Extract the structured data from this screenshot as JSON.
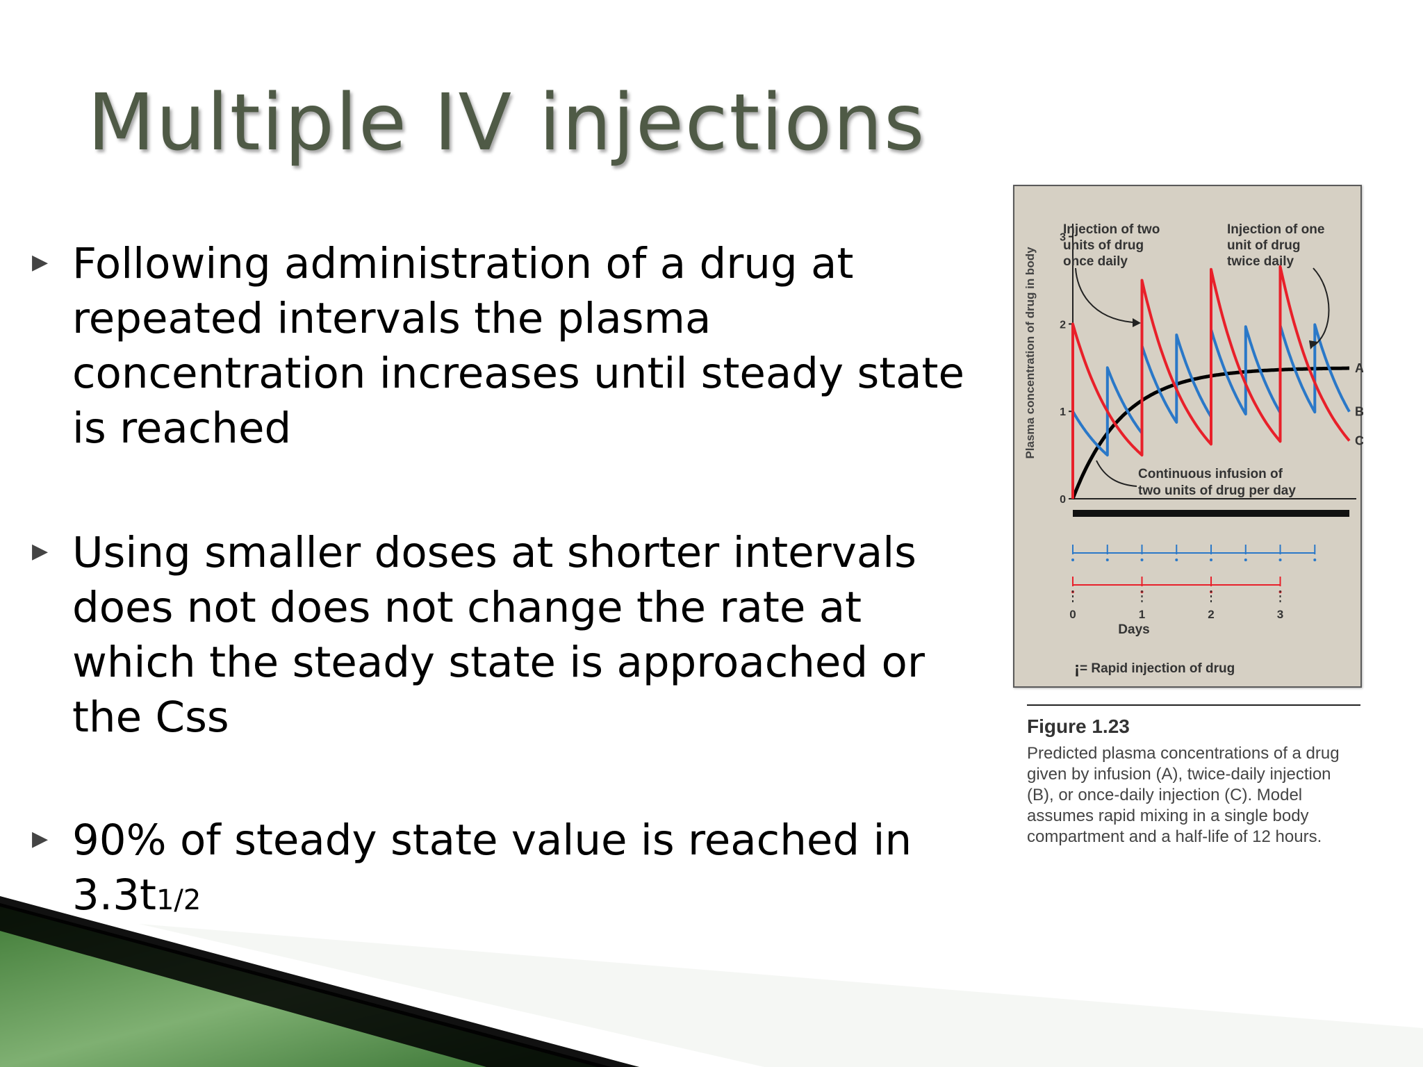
{
  "slide": {
    "title": "Multiple IV injections",
    "bullets": [
      {
        "text": "Following administration of a drug at repeated intervals the plasma concentration increases until steady state is reached"
      },
      {
        "text": "Using smaller doses at shorter intervals does not does not change the rate at which the steady state is approached or the Css"
      },
      {
        "text_main": "90% of steady state value is reached in 3.3t",
        "text_sub": "1/2"
      }
    ],
    "bullet_icon": "triangle-right-icon"
  },
  "figure": {
    "annotation_left": [
      "Injection of two",
      "units of drug",
      "once daily"
    ],
    "annotation_right": [
      "Injection of one",
      "unit of drug",
      "twice daily"
    ],
    "annotation_infusion": [
      "Continuous infusion of",
      "two units of drug per day"
    ],
    "legend": "= Rapid injection of drug",
    "caption_title": "Figure 1.23",
    "caption_text": "Predicted plasma concentrations of a drug given by infusion (A), twice-daily injection (B), or once-daily injection (C). Model assumes rapid mixing in a single body compartment and a half-life of 12 hours."
  },
  "chart_data": {
    "type": "line",
    "xlabel": "Days",
    "ylabel": "Plasma concentration of drug in body",
    "x_ticks": [
      "0",
      "1",
      "2",
      "3"
    ],
    "y_ticks": [
      "0",
      "1",
      "2",
      "3"
    ],
    "xlim": [
      0,
      4.1
    ],
    "ylim": [
      0,
      3.1
    ],
    "half_life_days": 0.5,
    "series": [
      {
        "name": "A",
        "label": "A",
        "color": "#000000",
        "kind": "infusion",
        "css": 1.5
      },
      {
        "name": "B",
        "label": "B",
        "color": "#2a78c8",
        "kind": "injection",
        "dose": 1,
        "interval": 0.5
      },
      {
        "name": "C",
        "label": "C",
        "color": "#e8202a",
        "kind": "injection",
        "dose": 2,
        "interval": 1
      }
    ],
    "injection_rows": [
      {
        "series": "B",
        "color": "#2a78c8",
        "times": [
          0,
          0.5,
          1,
          1.5,
          2,
          2.5,
          3,
          3.5
        ]
      },
      {
        "series": "C",
        "color": "#e8202a",
        "times": [
          0,
          1,
          2,
          3
        ]
      }
    ]
  }
}
